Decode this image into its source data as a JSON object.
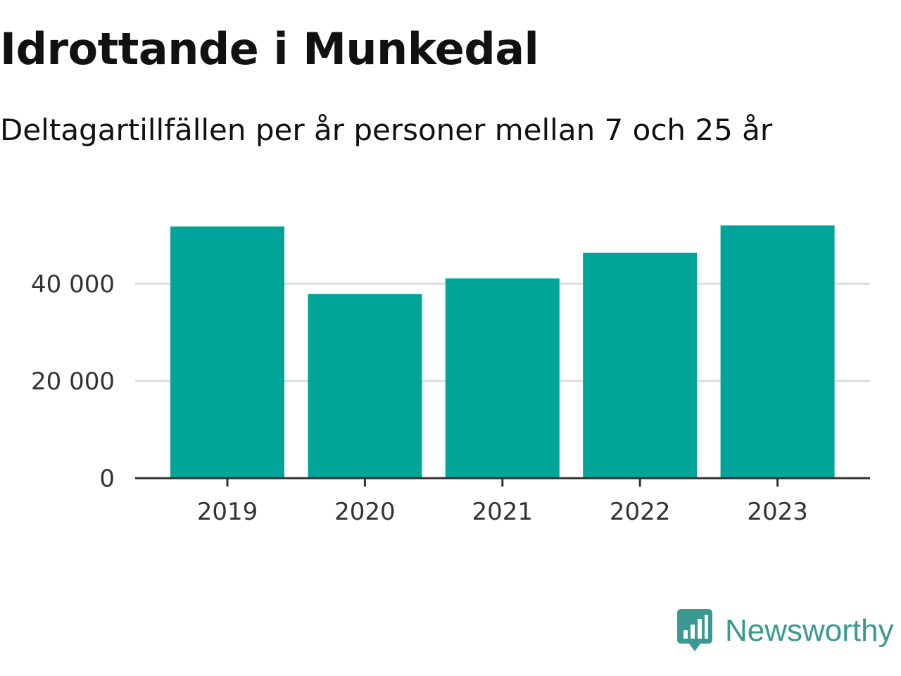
{
  "header": {
    "title": "Idrottande i Munkedal",
    "subtitle": "Deltagartillfällen per år personer mellan 7 och 25 år"
  },
  "brand": {
    "name": "Newsworthy",
    "color": "#3a9a92",
    "icon": "bar-chart-speech-bubble-icon"
  },
  "colors": {
    "bar": "#00a59a",
    "grid": "#dddddd",
    "axis": "#333333",
    "text": "#333333"
  },
  "chart_data": {
    "type": "bar",
    "categories": [
      "2019",
      "2020",
      "2021",
      "2022",
      "2023"
    ],
    "values": [
      51800,
      37900,
      41100,
      46400,
      52000
    ],
    "title": "Idrottande i Munkedal",
    "subtitle": "Deltagartillfällen per år personer mellan 7 och 25 år",
    "xlabel": "",
    "ylabel": "",
    "ylim": [
      0,
      55000
    ],
    "yticks": [
      0,
      20000,
      40000
    ],
    "ytick_labels": [
      "0",
      "20 000",
      "40 000"
    ],
    "grid": true,
    "legend": "none"
  }
}
